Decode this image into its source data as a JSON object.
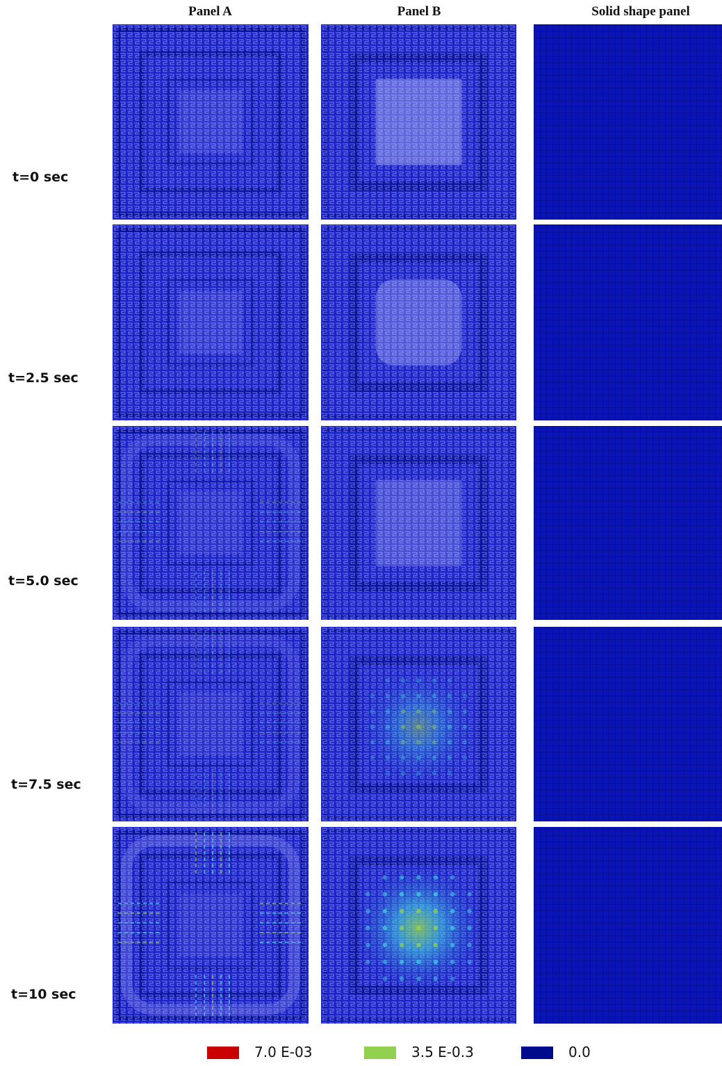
{
  "columns": {
    "panel_a": "Panel A",
    "panel_b": "Panel B",
    "solid": "Solid shape panel"
  },
  "time_steps": [
    "t=0 sec",
    "t=2.5 sec",
    "t=5.0 sec",
    "t=7.5 sec",
    "t=10 sec"
  ],
  "legend": [
    {
      "label": "7.0 E-03",
      "color": "#c80000"
    },
    {
      "label": "3.5 E-0.3",
      "color": "#92d050"
    },
    {
      "label": "0.0",
      "color": "#000a8c"
    }
  ],
  "colors": {
    "panel_blue": "#1a22c8",
    "dark_blue": "#000a8c",
    "light_blue": "#9aa0ee",
    "cyan": "#40e0e0",
    "green": "#92d050",
    "solid_blue": "#0a14b4"
  }
}
